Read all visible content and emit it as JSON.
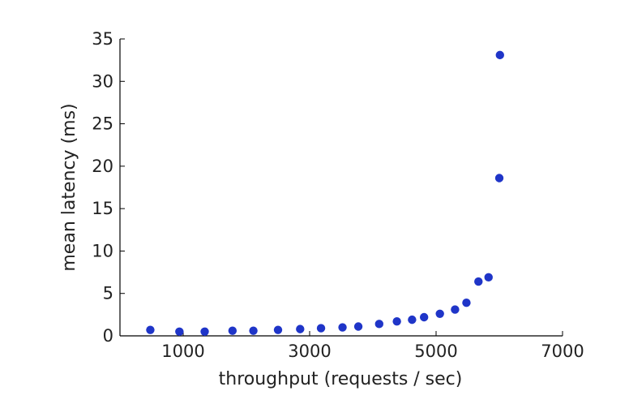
{
  "chart_data": {
    "type": "scatter",
    "xlabel": "throughput (requests / sec)",
    "ylabel": "mean latency (ms)",
    "xlim": [
      0,
      7000
    ],
    "ylim": [
      0,
      35
    ],
    "xticks": [
      1000,
      3000,
      5000,
      7000
    ],
    "yticks": [
      0,
      5,
      10,
      15,
      20,
      25,
      30,
      35
    ],
    "grid": false,
    "colors": {
      "marker": "#1f35c8",
      "axis": "#000000",
      "text": "#222222"
    },
    "series": [
      {
        "x": [
          480,
          940,
          1340,
          1780,
          2110,
          2500,
          2850,
          3180,
          3520,
          3770,
          4100,
          4380,
          4620,
          4810,
          5060,
          5300,
          5480,
          5670,
          5830,
          6000,
          6010
        ],
        "y": [
          0.7,
          0.5,
          0.5,
          0.6,
          0.6,
          0.7,
          0.8,
          0.9,
          1.0,
          1.1,
          1.4,
          1.7,
          1.9,
          2.2,
          2.6,
          3.1,
          3.9,
          6.4,
          6.9,
          18.6,
          33.1
        ]
      }
    ]
  }
}
